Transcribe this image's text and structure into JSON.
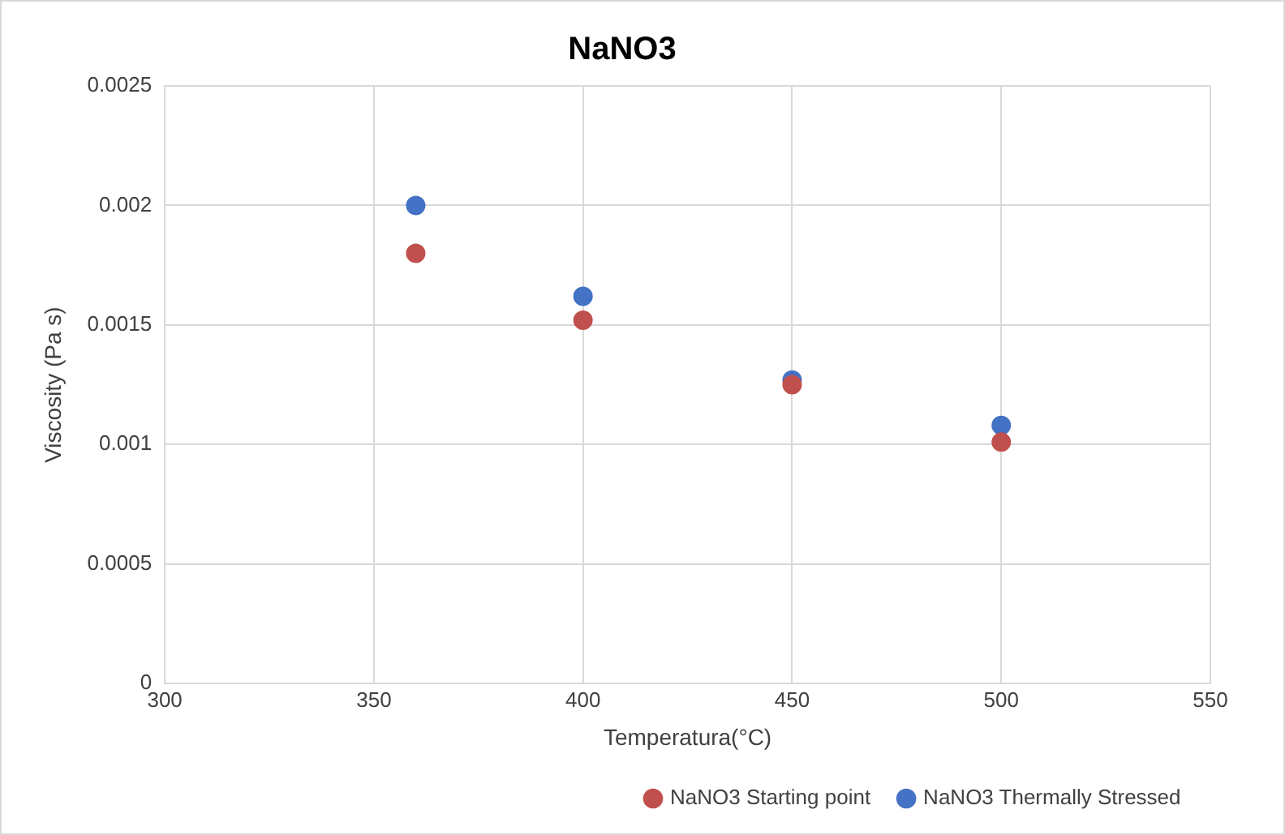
{
  "chart_data": {
    "type": "scatter",
    "title": "NaNO3",
    "xlabel": "Temperatura(°C)",
    "ylabel": "Viscosity (Pa s)",
    "x": [
      360,
      400,
      450,
      500
    ],
    "series": [
      {
        "name": "NaNO3 Thermally Stressed",
        "color": "#4472c4",
        "values": [
          0.002,
          0.00162,
          0.00127,
          0.00108
        ]
      },
      {
        "name": "NaNO3 Starting point",
        "color": "#c0504d",
        "values": [
          0.0018,
          0.00152,
          0.00125,
          0.00101
        ]
      }
    ],
    "xlim": [
      300,
      550
    ],
    "xticks": [
      300,
      350,
      400,
      450,
      500,
      550
    ],
    "ylim": [
      0,
      0.0025
    ],
    "yticks": [
      0,
      0.0005,
      0.001,
      0.0015,
      0.002,
      0.0025
    ],
    "grid": true,
    "legend": "bottom right",
    "marker": "circle"
  }
}
